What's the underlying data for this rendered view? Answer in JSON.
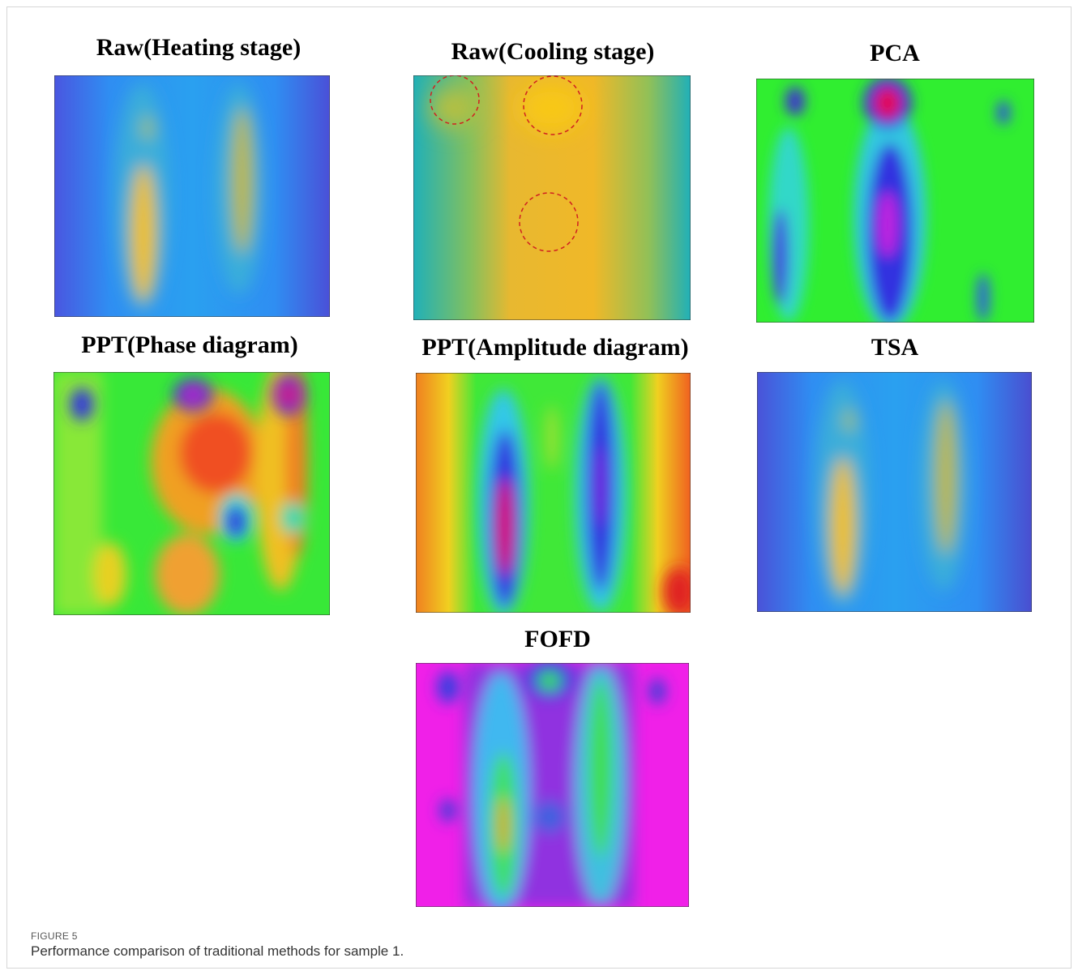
{
  "figure": {
    "panels": [
      {
        "title": "Raw(Heating stage)"
      },
      {
        "title": "Raw(Cooling stage)"
      },
      {
        "title": "PCA"
      },
      {
        "title": "PPT(Phase diagram)"
      },
      {
        "title": "PPT(Amplitude diagram)"
      },
      {
        "title": "TSA"
      },
      {
        "title": "FOFD"
      }
    ],
    "caption": {
      "label": "FIGURE 5",
      "text": "Performance comparison of traditional methods for sample 1."
    }
  }
}
